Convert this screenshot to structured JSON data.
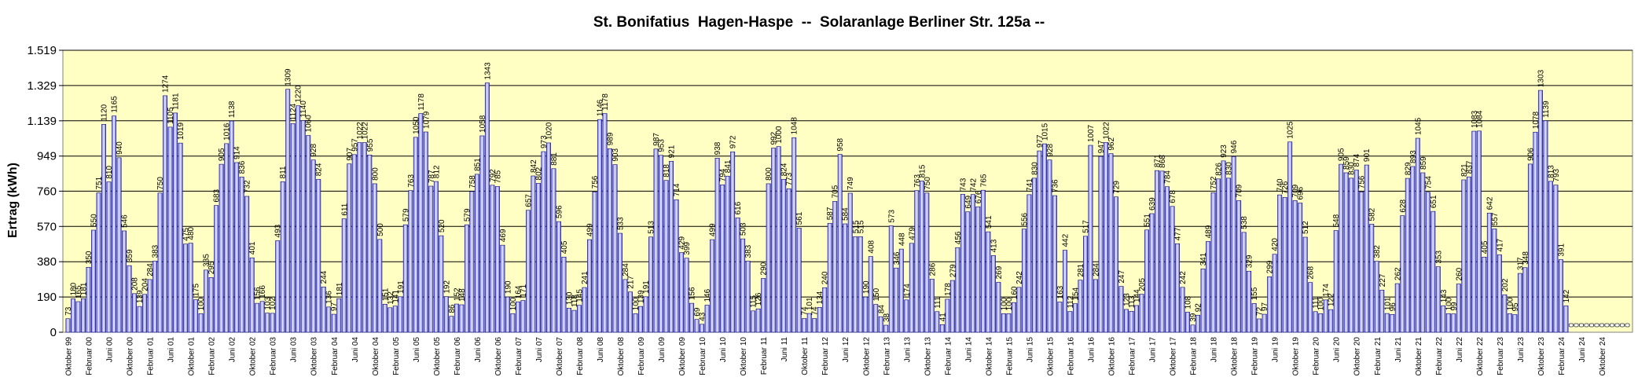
{
  "chart_data": {
    "type": "bar",
    "title": "St. Bonifatius  Hagen-Haspe  --  Solaranlage Berliner Str. 125a --",
    "xlabel": "",
    "ylabel": "Ertrag (kWh)",
    "ylim": [
      0,
      1519
    ],
    "yticks": [
      0,
      190,
      380,
      570,
      760,
      949,
      1139,
      1329,
      1519
    ],
    "ytick_labels": [
      "0",
      "190",
      "380",
      "570",
      "760",
      "949",
      "1.139",
      "1.329",
      "1.519"
    ],
    "start": "Oktober 99",
    "xtick_labels": [
      "Oktober 99",
      "Februar 00",
      "Juni 00",
      "Oktober 00",
      "Februar 01",
      "Juni 01",
      "Oktober 01",
      "Februar 02",
      "Juni 02",
      "Oktober 02",
      "Februar 03",
      "Juni 03",
      "Oktober 03",
      "Februar 04",
      "Juni 04",
      "Oktober 04",
      "Februar 05",
      "Juni 05",
      "Oktober 05",
      "Februar 06",
      "Juni 06",
      "Oktober 06",
      "Februar 07",
      "Juni 07",
      "Oktober 07",
      "Februar 08",
      "Juni 08",
      "Oktober 08",
      "Februar 09",
      "Juni 09",
      "Oktober 09",
      "Februar 10",
      "Juni 10",
      "Oktober 10",
      "Februar 11",
      "Juni 11",
      "Oktober 11",
      "Februar 12",
      "Juni 12",
      "Oktober 12",
      "Februar 13",
      "Juni 13",
      "Oktober 13",
      "Februar 14",
      "Juni 14",
      "Oktober 14",
      "Februar 15",
      "Juni 15",
      "Oktober 15",
      "Februar 16",
      "Juni 16",
      "Oktober 16",
      "Februar 17",
      "Juni 17",
      "Oktober 17",
      "Februar 18",
      "Juni 18",
      "Oktober 18",
      "Februar 19",
      "Juni 19",
      "Oktober 19",
      "Februar 20",
      "Juni 20",
      "Oktober 20",
      "Februar 21",
      "Juni 21",
      "Oktober 21",
      "Februar 22",
      "Juni 22",
      "Oktober 22",
      "Februar 23",
      "Juni 23",
      "Oktober 23",
      "Februar 24",
      "Juni 24",
      "Oktober 24"
    ],
    "values": [
      73,
      180,
      165,
      181,
      350,
      550,
      751,
      1120,
      810,
      1165,
      940,
      546,
      359,
      208,
      139,
      204,
      284,
      383,
      750,
      1274,
      1105,
      1181,
      1019,
      475,
      480,
      175,
      100,
      335,
      295,
      683,
      905,
      1016,
      1138,
      914,
      836,
      732,
      401,
      156,
      166,
      103,
      102,
      493,
      811,
      1309,
      1124,
      1220,
      1140,
      1060,
      928,
      824,
      244,
      136,
      97,
      181,
      611,
      907,
      957,
      1022,
      1022,
      955,
      800,
      500,
      151,
      132,
      141,
      191,
      579,
      763,
      1050,
      1178,
      1079,
      787,
      812,
      520,
      192,
      86,
      152,
      148,
      579,
      758,
      851,
      1058,
      1343,
      792,
      785,
      469,
      190,
      100,
      164,
      171,
      657,
      842,
      802,
      973,
      1020,
      881,
      596,
      405,
      130,
      118,
      145,
      241,
      499,
      756,
      1146,
      1178,
      989,
      903,
      533,
      284,
      217,
      100,
      139,
      191,
      513,
      987,
      953,
      818,
      921,
      714,
      429,
      399,
      156,
      69,
      43,
      146,
      499,
      938,
      794,
      841,
      972,
      616,
      503,
      383,
      115,
      126,
      290,
      800,
      992,
      1000,
      824,
      773,
      1048,
      561,
      74,
      101,
      74,
      134,
      240,
      587,
      705,
      958,
      584,
      749,
      515,
      515,
      190,
      408,
      150,
      84,
      38,
      573,
      346,
      448,
      174,
      479,
      763,
      815,
      750,
      286,
      111,
      41,
      178,
      279,
      456,
      743,
      649,
      742,
      676,
      765,
      541,
      413,
      269,
      100,
      100,
      160,
      242,
      556,
      741,
      830,
      977,
      1015,
      928,
      736,
      163,
      442,
      112,
      154,
      281,
      517,
      1007,
      284,
      947,
      1022,
      962,
      729,
      247,
      123,
      113,
      144,
      205,
      551,
      639,
      871,
      868,
      784,
      678,
      477,
      242,
      108,
      39,
      92,
      341,
      489,
      752,
      826,
      923,
      830,
      946,
      709,
      538,
      329,
      155,
      72,
      97,
      299,
      420,
      740,
      726,
      1025,
      709,
      696,
      512,
      268,
      111,
      100,
      174,
      122,
      548,
      905,
      859,
      830,
      874,
      756,
      901,
      582,
      382,
      227,
      101,
      96,
      262,
      628,
      829,
      893,
      1045,
      859,
      754,
      651,
      353,
      143,
      100,
      99,
      260,
      821,
      837,
      1083,
      1084,
      405,
      642,
      557,
      417,
      202,
      100,
      95,
      317,
      348,
      906,
      1078,
      1303,
      1139,
      813,
      793,
      391,
      142,
      0,
      0,
      0,
      0,
      0,
      0,
      0,
      0,
      0,
      0,
      0,
      0
    ]
  }
}
